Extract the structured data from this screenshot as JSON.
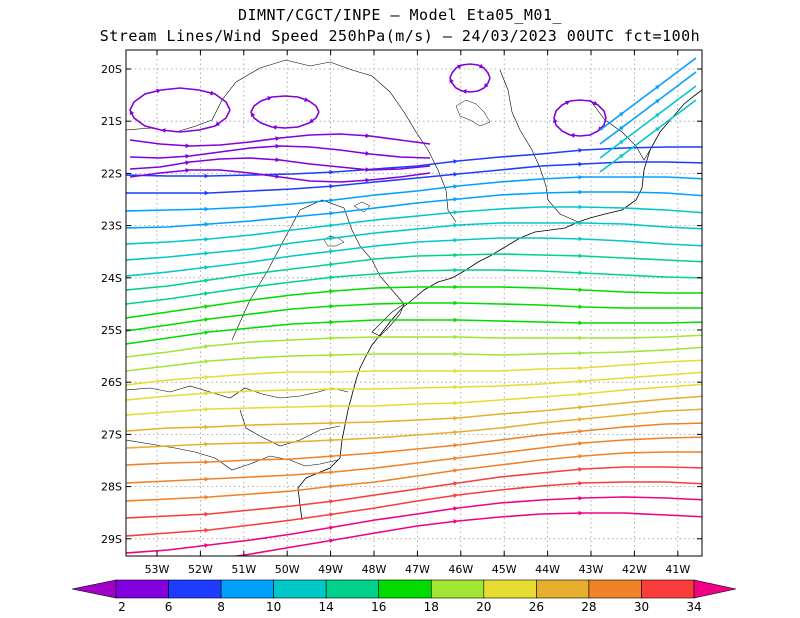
{
  "title_line1": "DIMNT/CGCT/INPE  —  Model Eta05_M01_",
  "title_line2": "Stream Lines/Wind Speed 250hPa(m/s)  —  24/03/2023 00UTC fct=100h",
  "lat_labels": [
    "20S",
    "21S",
    "22S",
    "23S",
    "24S",
    "25S",
    "26S",
    "27S",
    "28S",
    "29S"
  ],
  "lon_labels": [
    "53W",
    "52W",
    "51W",
    "50W",
    "49W",
    "48W",
    "47W",
    "46W",
    "45W",
    "44W",
    "43W",
    "42W",
    "41W"
  ],
  "colorbar": {
    "labels": [
      "2",
      "6",
      "8",
      "10",
      "14",
      "16",
      "18",
      "20",
      "26",
      "28",
      "30",
      "34"
    ],
    "colors": [
      "#a000c8",
      "#8200dc",
      "#1e3cff",
      "#00a0ff",
      "#00c8c8",
      "#00d28c",
      "#00dc00",
      "#a0e632",
      "#e6dc32",
      "#e6af2d",
      "#f08228",
      "#fa3c3c",
      "#f00082"
    ]
  },
  "chart_data": {
    "type": "map",
    "projection": "lat-lon",
    "lat_range": [
      "20S",
      "29.5S"
    ],
    "lon_range": [
      "53.5W",
      "40.5W"
    ],
    "variable": "Stream Lines/Wind Speed 250hPa(m/s)",
    "grid": "dotted"
  }
}
